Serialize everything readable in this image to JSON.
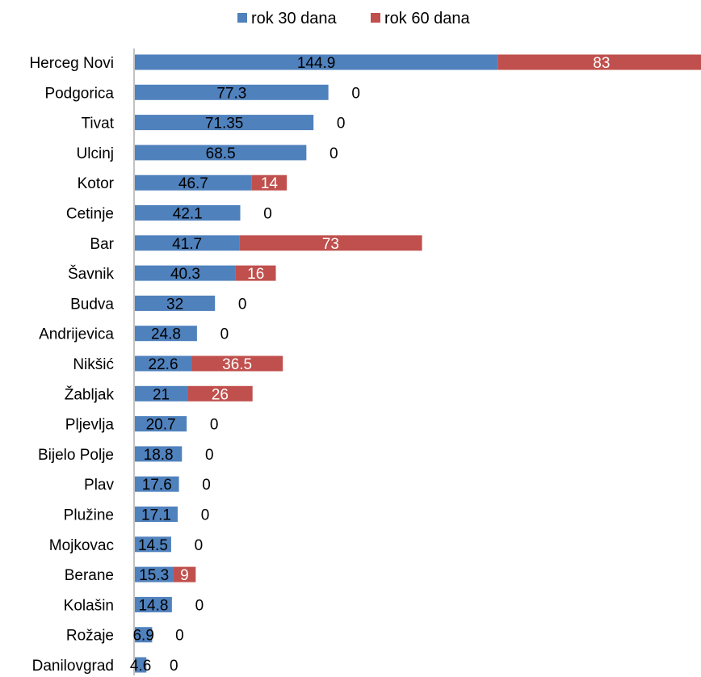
{
  "chart_data": {
    "type": "bar",
    "orientation": "horizontal",
    "stacked": true,
    "grid": false,
    "legend_position": "top",
    "categories": [
      "Herceg Novi",
      "Podgorica",
      "Tivat",
      "Ulcinj",
      "Kotor",
      "Cetinje",
      "Bar",
      "Šavnik",
      "Budva",
      "Andrijevica",
      "Nikšić",
      "Žabljak",
      "Pljevlja",
      "Bijelo Polje",
      "Plav",
      "Plužine",
      "Mojkovac",
      "Berane",
      "Kolašin",
      "Rožaje",
      "Danilovgrad"
    ],
    "series": [
      {
        "name": "rok 30 dana",
        "color": "#4F81BD",
        "values": [
          144.9,
          77.3,
          71.35,
          68.5,
          46.7,
          42.1,
          41.7,
          40.3,
          32,
          24.8,
          22.6,
          21,
          20.7,
          18.8,
          17.6,
          17.1,
          14.5,
          15.3,
          14.8,
          6.9,
          4.6
        ],
        "labels": [
          "144.9",
          "77.3",
          "71.35",
          "68.5",
          "46.7",
          "42.1",
          "41.7",
          "40.3",
          "32",
          "24.8",
          "22.6",
          "21",
          "20.7",
          "18.8",
          "17.6",
          "17.1",
          "14.5",
          "15.3",
          "14.8",
          "6.9",
          "4.6"
        ]
      },
      {
        "name": "rok 60 dana",
        "color": "#C0504D",
        "values": [
          83,
          0,
          0,
          0,
          14,
          0,
          73,
          16,
          0,
          0,
          36.5,
          26,
          0,
          0,
          0,
          0,
          0,
          9,
          0,
          0,
          0
        ],
        "labels": [
          "83",
          "0",
          "0",
          "0",
          "14",
          "0",
          "73",
          "16",
          "0",
          "0",
          "36.5",
          "26",
          "0",
          "0",
          "0",
          "0",
          "0",
          "9",
          "0",
          "0",
          "0"
        ]
      }
    ]
  }
}
